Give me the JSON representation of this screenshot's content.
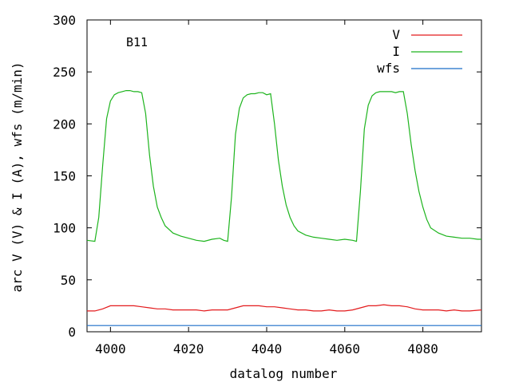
{
  "chart_data": {
    "type": "line",
    "annotation": "B11",
    "xlabel": "datalog number",
    "ylabel": "arc V (V) & I (A), wfs (m/min)",
    "xlim": [
      3994,
      4095
    ],
    "ylim": [
      0,
      300
    ],
    "xticks": [
      4000,
      4020,
      4040,
      4060,
      4080
    ],
    "yticks": [
      0,
      50,
      100,
      150,
      200,
      250,
      300
    ],
    "grid": false,
    "legend_position": "top-right",
    "series": [
      {
        "name": "V",
        "color": "#e31a1c",
        "x": [
          3994,
          3996,
          3998,
          4000,
          4002,
          4004,
          4006,
          4008,
          4010,
          4012,
          4014,
          4016,
          4018,
          4020,
          4022,
          4024,
          4026,
          4028,
          4030,
          4032,
          4034,
          4036,
          4038,
          4040,
          4042,
          4044,
          4046,
          4048,
          4050,
          4052,
          4054,
          4056,
          4058,
          4060,
          4062,
          4064,
          4066,
          4068,
          4070,
          4072,
          4074,
          4076,
          4078,
          4080,
          4082,
          4084,
          4086,
          4088,
          4090,
          4092,
          4095
        ],
        "y": [
          20,
          20,
          22,
          25,
          25,
          25,
          25,
          24,
          23,
          22,
          22,
          21,
          21,
          21,
          21,
          20,
          21,
          21,
          21,
          23,
          25,
          25,
          25,
          24,
          24,
          23,
          22,
          21,
          21,
          20,
          20,
          21,
          20,
          20,
          21,
          23,
          25,
          25,
          26,
          25,
          25,
          24,
          22,
          21,
          21,
          21,
          20,
          21,
          20,
          20,
          21
        ]
      },
      {
        "name": "I",
        "color": "#1db41d",
        "x": [
          3994,
          3996,
          3997,
          3998,
          3999,
          4000,
          4001,
          4002,
          4003,
          4004,
          4005,
          4006,
          4007,
          4008,
          4009,
          4010,
          4011,
          4012,
          4013,
          4014,
          4016,
          4018,
          4020,
          4022,
          4024,
          4026,
          4028,
          4029,
          4030,
          4031,
          4032,
          4033,
          4034,
          4035,
          4036,
          4037,
          4038,
          4039,
          4040,
          4041,
          4042,
          4043,
          4044,
          4045,
          4046,
          4047,
          4048,
          4050,
          4052,
          4054,
          4056,
          4058,
          4060,
          4062,
          4063,
          4064,
          4065,
          4066,
          4067,
          4068,
          4069,
          4070,
          4071,
          4072,
          4073,
          4074,
          4075,
          4076,
          4077,
          4078,
          4079,
          4080,
          4081,
          4082,
          4084,
          4086,
          4088,
          4090,
          4092,
          4094,
          4095
        ],
        "y": [
          88,
          87,
          110,
          160,
          205,
          222,
          228,
          230,
          231,
          232,
          232,
          231,
          231,
          230,
          210,
          170,
          140,
          120,
          110,
          102,
          95,
          92,
          90,
          88,
          87,
          89,
          90,
          88,
          87,
          130,
          190,
          215,
          225,
          228,
          229,
          229,
          230,
          230,
          228,
          229,
          200,
          165,
          140,
          122,
          110,
          102,
          97,
          93,
          91,
          90,
          89,
          88,
          89,
          88,
          87,
          135,
          195,
          218,
          227,
          230,
          231,
          231,
          231,
          231,
          230,
          231,
          231,
          210,
          180,
          155,
          135,
          120,
          108,
          100,
          95,
          92,
          91,
          90,
          90,
          89,
          89
        ]
      },
      {
        "name": "wfs",
        "color": "#1a6ec8",
        "x": [
          3994,
          4095
        ],
        "y": [
          6,
          6
        ]
      }
    ]
  }
}
